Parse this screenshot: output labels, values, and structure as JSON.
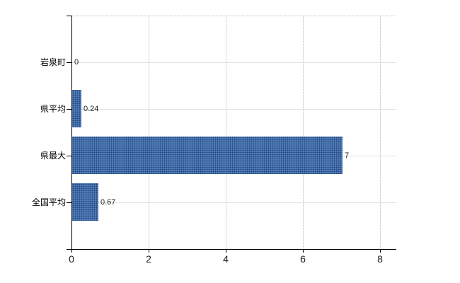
{
  "chart_data": {
    "type": "bar",
    "orientation": "horizontal",
    "title": "",
    "categories": [
      "岩泉町",
      "県平均",
      "県最大",
      "全国平均"
    ],
    "values": [
      0,
      0.24,
      7,
      0.67
    ],
    "value_labels": [
      "0",
      "0.24",
      "7",
      "0.67"
    ],
    "x_tick_values": [
      0,
      2,
      4,
      6,
      8
    ],
    "x_tick_labels": [
      "0",
      "2",
      "4",
      "6",
      "8"
    ],
    "xlim": [
      0,
      8.42
    ],
    "grid": true,
    "legend_position": "none",
    "colors": {
      "bar": "#3f6dab",
      "axis": "#000000",
      "category_gridline": "#dde4dc",
      "tick_gridline": "#d2d2d2",
      "value_label": "#1f1f1f",
      "tick_label": "#1c1c1c",
      "background": "#ffffff"
    }
  }
}
